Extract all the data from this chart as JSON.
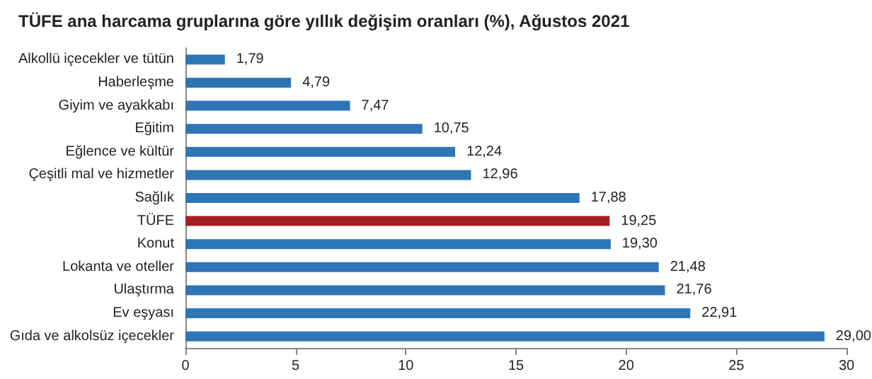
{
  "chart_data": {
    "type": "bar",
    "orientation": "horizontal",
    "title": "TÜFE ana harcama gruplarına göre yıllık değişim oranları (%), Ağustos 2021",
    "categories": [
      "Alkollü içecekler ve tütün",
      "Haberleşme",
      "Giyim ve ayakkabı",
      "Eğitim",
      "Eğlence ve kültür",
      "Çeşitli mal ve hizmetler",
      "Sağlık",
      "TÜFE",
      "Konut",
      "Lokanta ve oteller",
      "Ulaştırma",
      "Ev eşyası",
      "Gıda ve alkolsüz içecekler"
    ],
    "values": [
      1.79,
      4.79,
      7.47,
      10.75,
      12.24,
      12.96,
      17.88,
      19.25,
      19.3,
      21.48,
      21.76,
      22.91,
      29.0
    ],
    "colors": [
      "#2e75b6",
      "#2e75b6",
      "#2e75b6",
      "#2e75b6",
      "#2e75b6",
      "#2e75b6",
      "#2e75b6",
      "#a51e22",
      "#2e75b6",
      "#2e75b6",
      "#2e75b6",
      "#2e75b6",
      "#2e75b6"
    ],
    "value_labels": [
      "1,79",
      "4,79",
      "7,47",
      "10,75",
      "12,24",
      "12,96",
      "17,88",
      "19,25",
      "19,30",
      "21,48",
      "21,76",
      "22,91",
      "29,00"
    ],
    "xlim": [
      0,
      30
    ],
    "xticks": [
      0,
      5,
      10,
      15,
      20,
      25,
      30
    ],
    "grid": false
  }
}
